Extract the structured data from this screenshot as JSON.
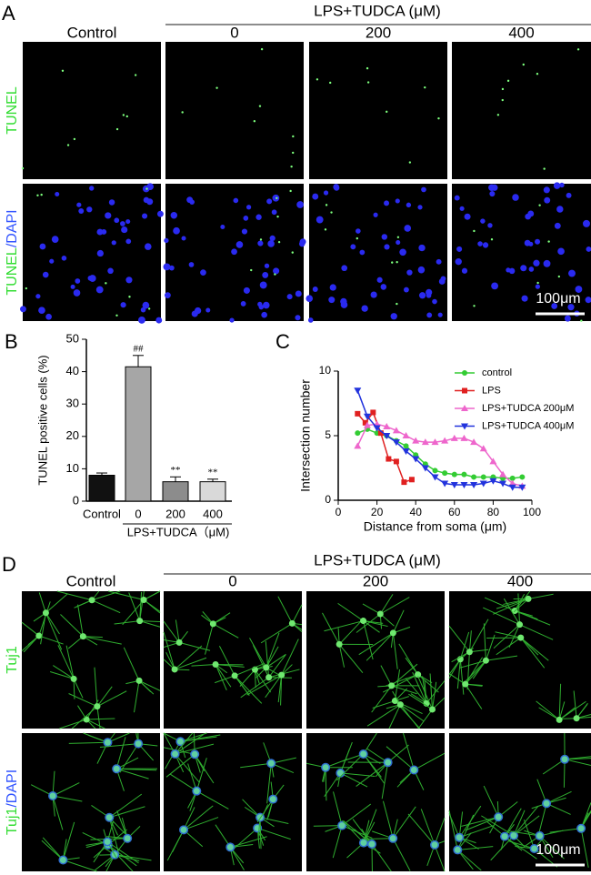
{
  "panel_labels": [
    "A",
    "B",
    "C",
    "D"
  ],
  "panel_a": {
    "group_label": "LPS+TUDCA (μM)",
    "columns": [
      "Control",
      "0",
      "200",
      "400"
    ],
    "rows": [
      [
        "TUNEL"
      ],
      [
        "TUNEL",
        "/DAPI"
      ]
    ],
    "scale_bar": "100μm"
  },
  "panel_d": {
    "group_label": "LPS+TUDCA (μM)",
    "columns": [
      "Control",
      "0",
      "200",
      "400"
    ],
    "rows": [
      [
        "Tuj1"
      ],
      [
        "Tuj1",
        "/DAPI"
      ]
    ],
    "scale_bar": "100μm"
  },
  "chart_data": [
    {
      "type": "bar",
      "ylabel": "TUNEL positive cells (%)",
      "categories": [
        "Control",
        "0",
        "200",
        "400"
      ],
      "values": [
        8,
        41.5,
        6,
        6
      ],
      "errors": [
        0.7,
        3.5,
        1.5,
        0.8
      ],
      "colors": [
        "#111111",
        "#a6a6a6",
        "#8c8c8c",
        "#d9d9d9"
      ],
      "annotations": [
        null,
        "##",
        "**",
        "**"
      ],
      "group_label": "LPS+TUDCA（μM)",
      "ylim": [
        0,
        50
      ],
      "yticks": [
        0,
        10,
        20,
        30,
        40,
        50
      ]
    },
    {
      "type": "line",
      "xlabel": "Distance from soma (μm)",
      "ylabel": "Intersection number",
      "xlim": [
        0,
        100
      ],
      "xticks": [
        0,
        20,
        40,
        60,
        80,
        100
      ],
      "ylim": [
        0,
        10
      ],
      "yticks": [
        0,
        5,
        10
      ],
      "series": [
        {
          "name": "control",
          "color": "#33cc33",
          "marker": "circle",
          "x": [
            10,
            15,
            20,
            25,
            30,
            35,
            40,
            45,
            50,
            55,
            60,
            65,
            70,
            75,
            80,
            85,
            90,
            95
          ],
          "values": [
            5.2,
            5.5,
            5.2,
            5.0,
            4.6,
            4.2,
            3.5,
            2.8,
            2.3,
            2.1,
            2.0,
            2.0,
            1.8,
            1.8,
            1.8,
            1.7,
            1.7,
            1.8
          ]
        },
        {
          "name": "LPS",
          "color": "#e02020",
          "marker": "square",
          "x": [
            10,
            14,
            18,
            22,
            26,
            30,
            34,
            38
          ],
          "values": [
            6.7,
            6.0,
            6.8,
            5.2,
            3.2,
            3.0,
            1.4,
            1.6
          ]
        },
        {
          "name": "LPS+TUDCA 200μM",
          "color": "#ee66cc",
          "marker": "triangle-up",
          "x": [
            10,
            15,
            20,
            25,
            30,
            35,
            40,
            45,
            50,
            55,
            60,
            65,
            70,
            75,
            80,
            85,
            90,
            95
          ],
          "values": [
            4.2,
            5.8,
            5.9,
            5.7,
            5.4,
            5.0,
            4.6,
            4.5,
            4.5,
            4.6,
            4.8,
            4.8,
            4.5,
            4.0,
            3.0,
            2.0,
            1.3,
            1.1
          ]
        },
        {
          "name": "LPS+TUDCA 400μM",
          "color": "#2233dd",
          "marker": "triangle-down",
          "x": [
            10,
            15,
            20,
            25,
            30,
            35,
            40,
            45,
            50,
            55,
            60,
            65,
            70,
            75,
            80,
            85,
            90,
            95
          ],
          "values": [
            8.5,
            6.5,
            5.6,
            5.0,
            4.5,
            3.8,
            3.2,
            2.5,
            1.8,
            1.3,
            1.2,
            1.2,
            1.2,
            1.3,
            1.5,
            1.3,
            1.0,
            1.0
          ]
        }
      ]
    }
  ]
}
